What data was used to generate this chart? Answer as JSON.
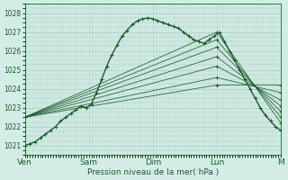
{
  "title": "Pression niveau de la mer( hPa )",
  "ylabel_ticks": [
    1021,
    1022,
    1023,
    1024,
    1025,
    1026,
    1027,
    1028
  ],
  "ylim": [
    1020.5,
    1028.5
  ],
  "xlim": [
    0,
    100
  ],
  "x_day_ticks": [
    0,
    25,
    50,
    75,
    100
  ],
  "x_day_labels": [
    "Ven",
    "Sam",
    "Dim",
    "Lun",
    "M"
  ],
  "background_color": "#d4ece6",
  "grid_color": "#aaccc5",
  "line_color": "#1a5c2a",
  "main_line": {
    "x": [
      0,
      2,
      4,
      6,
      8,
      10,
      12,
      14,
      16,
      18,
      20,
      22,
      24,
      26,
      28,
      30,
      32,
      34,
      36,
      38,
      40,
      42,
      44,
      46,
      48,
      50,
      52,
      54,
      56,
      58,
      60,
      62,
      64,
      66,
      68,
      70,
      72,
      74,
      76,
      78,
      80,
      82,
      84,
      86,
      88,
      90,
      92,
      94,
      96,
      98,
      100
    ],
    "y": [
      1021.0,
      1021.1,
      1021.2,
      1021.4,
      1021.6,
      1021.8,
      1022.0,
      1022.3,
      1022.5,
      1022.7,
      1022.9,
      1023.1,
      1023.0,
      1023.2,
      1023.8,
      1024.5,
      1025.2,
      1025.8,
      1026.3,
      1026.8,
      1027.1,
      1027.4,
      1027.6,
      1027.7,
      1027.75,
      1027.7,
      1027.6,
      1027.5,
      1027.4,
      1027.3,
      1027.2,
      1027.0,
      1026.8,
      1026.6,
      1026.5,
      1026.4,
      1026.6,
      1026.8,
      1027.0,
      1026.5,
      1026.0,
      1025.5,
      1025.0,
      1024.5,
      1024.0,
      1023.5,
      1023.0,
      1022.6,
      1022.3,
      1022.0,
      1021.8
    ]
  },
  "fan_lines": [
    {
      "x": [
        0,
        75,
        100
      ],
      "y": [
        1022.5,
        1027.0,
        1022.2
      ]
    },
    {
      "x": [
        0,
        75,
        100
      ],
      "y": [
        1022.5,
        1026.6,
        1022.5
      ]
    },
    {
      "x": [
        0,
        75,
        100
      ],
      "y": [
        1022.5,
        1026.2,
        1022.8
      ]
    },
    {
      "x": [
        0,
        75,
        100
      ],
      "y": [
        1022.5,
        1025.7,
        1023.1
      ]
    },
    {
      "x": [
        0,
        75,
        100
      ],
      "y": [
        1022.5,
        1025.2,
        1023.4
      ]
    },
    {
      "x": [
        0,
        75,
        100
      ],
      "y": [
        1022.5,
        1024.6,
        1023.8
      ]
    },
    {
      "x": [
        0,
        75,
        100
      ],
      "y": [
        1022.5,
        1024.2,
        1024.2
      ]
    }
  ]
}
